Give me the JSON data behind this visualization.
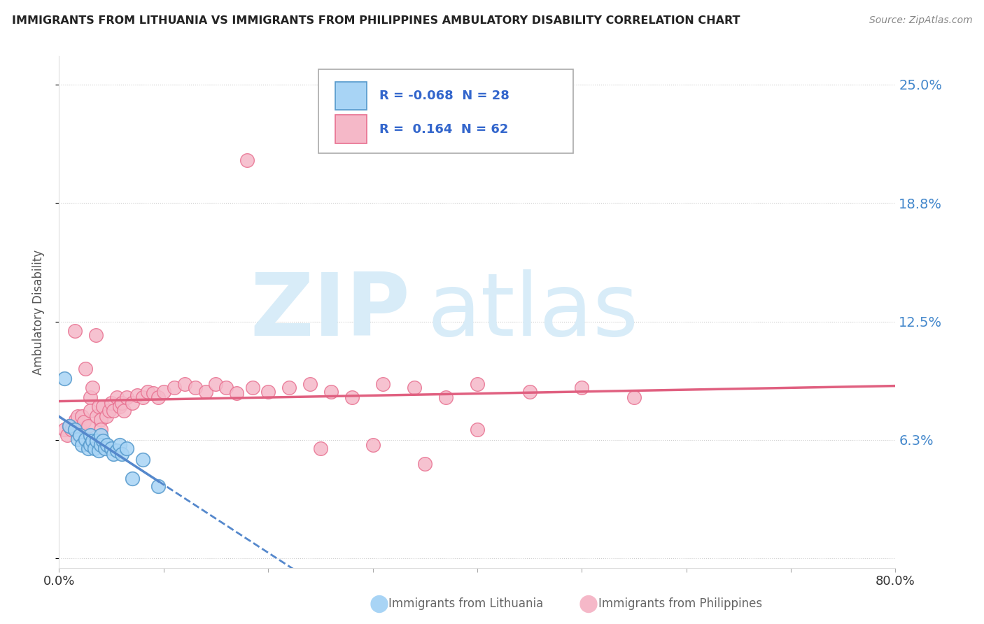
{
  "title": "IMMIGRANTS FROM LITHUANIA VS IMMIGRANTS FROM PHILIPPINES AMBULATORY DISABILITY CORRELATION CHART",
  "source": "Source: ZipAtlas.com",
  "ylabel": "Ambulatory Disability",
  "xlim": [
    0.0,
    0.8
  ],
  "ylim": [
    -0.005,
    0.265
  ],
  "yticks": [
    0.0,
    0.0625,
    0.125,
    0.1875,
    0.25
  ],
  "ytick_labels": [
    "",
    "6.3%",
    "12.5%",
    "18.8%",
    "25.0%"
  ],
  "xticks": [
    0.0,
    0.1,
    0.2,
    0.3,
    0.4,
    0.5,
    0.6,
    0.7,
    0.8
  ],
  "xtick_labels": [
    "0.0%",
    "",
    "",
    "",
    "",
    "",
    "",
    "",
    "80.0%"
  ],
  "lithuania_color": "#a8d4f5",
  "philippines_color": "#f5b8c8",
  "lithuania_edge": "#5599cc",
  "philippines_edge": "#e87090",
  "trend_lithuania_color": "#5588cc",
  "trend_philippines_color": "#e06080",
  "R_lithuania": -0.068,
  "N_lithuania": 28,
  "R_philippines": 0.164,
  "N_philippines": 62,
  "background_color": "#ffffff",
  "grid_color": "#cccccc",
  "title_color": "#222222",
  "axis_label_color": "#555555",
  "right_tick_color": "#4488CC",
  "watermark_color": "#d8ecf8",
  "legend_text_color": "#3366CC",
  "bottom_legend_color": "#666666",
  "lithuania_x": [
    0.005,
    0.01,
    0.015,
    0.018,
    0.02,
    0.022,
    0.025,
    0.028,
    0.03,
    0.03,
    0.032,
    0.034,
    0.036,
    0.038,
    0.04,
    0.04,
    0.042,
    0.044,
    0.046,
    0.05,
    0.052,
    0.055,
    0.058,
    0.06,
    0.065,
    0.07,
    0.08,
    0.095
  ],
  "lithuania_y": [
    0.095,
    0.07,
    0.068,
    0.063,
    0.065,
    0.06,
    0.063,
    0.058,
    0.065,
    0.06,
    0.062,
    0.058,
    0.062,
    0.057,
    0.065,
    0.06,
    0.062,
    0.058,
    0.06,
    0.058,
    0.055,
    0.057,
    0.06,
    0.055,
    0.058,
    0.042,
    0.052,
    0.038
  ],
  "philippines_x": [
    0.005,
    0.008,
    0.01,
    0.012,
    0.015,
    0.016,
    0.018,
    0.02,
    0.022,
    0.024,
    0.025,
    0.028,
    0.03,
    0.03,
    0.032,
    0.035,
    0.036,
    0.038,
    0.04,
    0.04,
    0.042,
    0.045,
    0.048,
    0.05,
    0.052,
    0.055,
    0.058,
    0.06,
    0.062,
    0.065,
    0.07,
    0.075,
    0.08,
    0.085,
    0.09,
    0.095,
    0.1,
    0.11,
    0.12,
    0.13,
    0.14,
    0.15,
    0.16,
    0.17,
    0.185,
    0.2,
    0.22,
    0.24,
    0.26,
    0.28,
    0.31,
    0.34,
    0.37,
    0.4,
    0.45,
    0.5,
    0.55,
    0.4,
    0.25,
    0.18,
    0.3,
    0.35
  ],
  "philippines_y": [
    0.068,
    0.065,
    0.07,
    0.068,
    0.12,
    0.073,
    0.075,
    0.068,
    0.075,
    0.072,
    0.1,
    0.07,
    0.085,
    0.078,
    0.09,
    0.118,
    0.075,
    0.08,
    0.073,
    0.068,
    0.08,
    0.075,
    0.078,
    0.082,
    0.078,
    0.085,
    0.08,
    0.082,
    0.078,
    0.085,
    0.082,
    0.086,
    0.085,
    0.088,
    0.087,
    0.085,
    0.088,
    0.09,
    0.092,
    0.09,
    0.088,
    0.092,
    0.09,
    0.087,
    0.09,
    0.088,
    0.09,
    0.092,
    0.088,
    0.085,
    0.092,
    0.09,
    0.085,
    0.092,
    0.088,
    0.09,
    0.085,
    0.068,
    0.058,
    0.21,
    0.06,
    0.05
  ]
}
